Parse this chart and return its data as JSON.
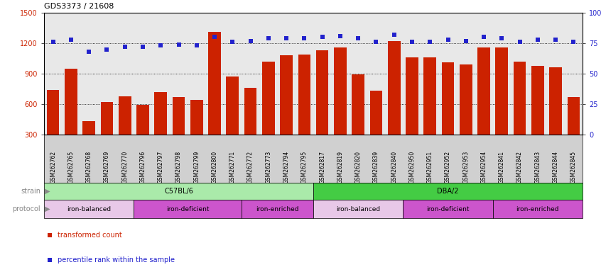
{
  "title": "GDS3373 / 21608",
  "samples": [
    "GSM262762",
    "GSM262765",
    "GSM262768",
    "GSM262769",
    "GSM262770",
    "GSM262796",
    "GSM262797",
    "GSM262798",
    "GSM262799",
    "GSM262800",
    "GSM262771",
    "GSM262772",
    "GSM262773",
    "GSM262794",
    "GSM262795",
    "GSM262817",
    "GSM262819",
    "GSM262820",
    "GSM262839",
    "GSM262840",
    "GSM262950",
    "GSM262951",
    "GSM262952",
    "GSM262953",
    "GSM262954",
    "GSM262841",
    "GSM262842",
    "GSM262843",
    "GSM262844",
    "GSM262845"
  ],
  "bar_values": [
    740,
    950,
    430,
    620,
    680,
    590,
    720,
    670,
    640,
    1310,
    870,
    760,
    1020,
    1080,
    1090,
    1130,
    1160,
    890,
    730,
    1220,
    1060,
    1060,
    1010,
    990,
    1160,
    1160,
    1020,
    980,
    960,
    670
  ],
  "percentile_values": [
    76,
    78,
    68,
    70,
    72,
    72,
    73,
    74,
    73,
    80,
    76,
    77,
    79,
    79,
    79,
    80,
    81,
    79,
    76,
    82,
    76,
    76,
    78,
    77,
    80,
    79,
    76,
    78,
    78,
    76
  ],
  "ylim_left": [
    300,
    1500
  ],
  "ylim_right": [
    0,
    100
  ],
  "yticks_left": [
    300,
    600,
    900,
    1200,
    1500
  ],
  "yticks_right": [
    0,
    25,
    50,
    75,
    100
  ],
  "bar_color": "#cc2200",
  "dot_color": "#2222cc",
  "plot_bg_color": "#e8e8e8",
  "xtick_bg_color": "#d0d0d0",
  "strain_groups": [
    {
      "label": "C57BL/6",
      "start": 0,
      "end": 15,
      "color": "#aaeaaa"
    },
    {
      "label": "DBA/2",
      "start": 15,
      "end": 30,
      "color": "#44cc44"
    }
  ],
  "protocol_groups": [
    {
      "label": "iron-balanced",
      "start": 0,
      "end": 5,
      "color": "#e8c8e8"
    },
    {
      "label": "iron-deficient",
      "start": 5,
      "end": 11,
      "color": "#cc55cc"
    },
    {
      "label": "iron-enriched",
      "start": 11,
      "end": 15,
      "color": "#cc55cc"
    },
    {
      "label": "iron-balanced",
      "start": 15,
      "end": 20,
      "color": "#e8c8e8"
    },
    {
      "label": "iron-deficient",
      "start": 20,
      "end": 25,
      "color": "#cc55cc"
    },
    {
      "label": "iron-enriched",
      "start": 25,
      "end": 30,
      "color": "#cc55cc"
    }
  ],
  "legend_bar_label": "transformed count",
  "legend_dot_label": "percentile rank within the sample",
  "strain_label": "strain",
  "protocol_label": "protocol"
}
